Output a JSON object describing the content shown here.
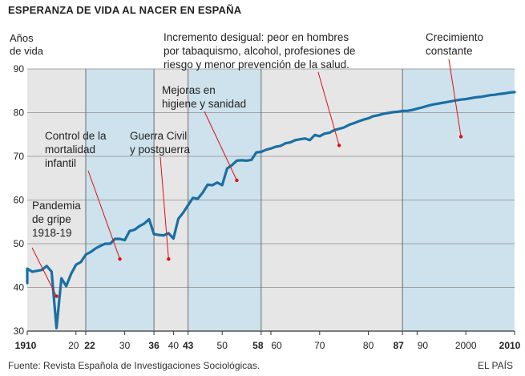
{
  "chart_data": {
    "type": "line",
    "title": "ESPERANZA DE VIDA AL NACER EN ESPAÑA",
    "ylabel": [
      "Años",
      "de vida"
    ],
    "xlabel": "",
    "ylim": [
      30,
      90
    ],
    "xlim": [
      1910,
      2010
    ],
    "yticks": [
      30,
      40,
      50,
      60,
      70,
      80,
      90
    ],
    "xticks": [
      {
        "value": 1910,
        "label": "1910",
        "bold": true
      },
      {
        "value": 1920,
        "label": "20",
        "bold": false
      },
      {
        "value": 1922,
        "label": "22",
        "bold": true
      },
      {
        "value": 1930,
        "label": "30",
        "bold": false
      },
      {
        "value": 1936,
        "label": "36",
        "bold": true
      },
      {
        "value": 1940,
        "label": "40",
        "bold": false
      },
      {
        "value": 1943,
        "label": "43",
        "bold": true
      },
      {
        "value": 1950,
        "label": "50",
        "bold": false
      },
      {
        "value": 1958,
        "label": "58",
        "bold": true
      },
      {
        "value": 1960,
        "label": "60",
        "bold": false
      },
      {
        "value": 1970,
        "label": "70",
        "bold": false
      },
      {
        "value": 1980,
        "label": "80",
        "bold": false
      },
      {
        "value": 1987,
        "label": "87",
        "bold": true
      },
      {
        "value": 1990,
        "label": "90",
        "bold": false
      },
      {
        "value": 2000,
        "label": "2000",
        "bold": false
      },
      {
        "value": 2010,
        "label": "2010",
        "bold": true
      }
    ],
    "grid": true,
    "periods": [
      {
        "start": 1910,
        "end": 1918,
        "color": "#e6e6e6"
      },
      {
        "start": 1918,
        "end": 1922,
        "color": "#e6e6e6"
      },
      {
        "start": 1922,
        "end": 1936,
        "color": "#cde2ec"
      },
      {
        "start": 1936,
        "end": 1943,
        "color": "#e6e6e6"
      },
      {
        "start": 1943,
        "end": 1958,
        "color": "#cde2ec"
      },
      {
        "start": 1958,
        "end": 1987,
        "color": "#e6e6e6"
      },
      {
        "start": 1987,
        "end": 2010,
        "color": "#cde2ec"
      }
    ],
    "series": [
      {
        "color": "#1a6fa3",
        "x": [
          1908,
          1909,
          1910,
          1911,
          1912,
          1913,
          1914,
          1915,
          1916,
          1917,
          1918,
          1919,
          1920,
          1921,
          1922,
          1923,
          1924,
          1925,
          1926,
          1927,
          1928,
          1929,
          1930,
          1931,
          1932,
          1933,
          1934,
          1935,
          1936,
          1937,
          1938,
          1939,
          1940,
          1941,
          1942,
          1943,
          1944,
          1945,
          1946,
          1947,
          1948,
          1949,
          1950,
          1951,
          1952,
          1953,
          1954,
          1955,
          1956,
          1957,
          1958,
          1959,
          1960,
          1961,
          1962,
          1963,
          1964,
          1965,
          1966,
          1967,
          1968,
          1969,
          1970,
          1971,
          1972,
          1973,
          1974,
          1975,
          1976,
          1977,
          1978,
          1979,
          1980,
          1981,
          1982,
          1983,
          1984,
          1985,
          1986,
          1987,
          1988,
          1989,
          1990,
          1991,
          1992,
          1993,
          1994,
          1995,
          1996,
          1997,
          1998,
          1999,
          2000,
          2001,
          2002,
          2003,
          2004,
          2005,
          2006,
          2007,
          2008,
          2009,
          2010
        ],
        "y": [
          42.0,
          41.0,
          44.3,
          43.6,
          43.8,
          44.0,
          44.9,
          43.6,
          30.7,
          42.1,
          40.3,
          43.1,
          45.2,
          45.8,
          47.5,
          48.1,
          48.9,
          49.5,
          50.0,
          50.0,
          51.1,
          51.1,
          50.8,
          52.9,
          53.2,
          54.0,
          54.6,
          55.6,
          52.2,
          52.0,
          51.9,
          52.4,
          51.2,
          55.7,
          57.1,
          58.8,
          60.5,
          60.3,
          61.7,
          63.5,
          63.4,
          64.0,
          63.4,
          67.2,
          68.0,
          69.0,
          69.1,
          69.0,
          69.2,
          70.9,
          71.0,
          71.5,
          71.8,
          72.2,
          72.4,
          73.0,
          73.2,
          73.7,
          73.9,
          74.1,
          73.7,
          74.9,
          74.6,
          75.2,
          75.4,
          76.0,
          76.3,
          76.6,
          77.2,
          77.6,
          78.0,
          78.4,
          78.7,
          79.2,
          79.4,
          79.7,
          79.9,
          80.1,
          80.2,
          80.4,
          80.4,
          80.6,
          80.9,
          81.2,
          81.5,
          81.8,
          82.0,
          82.2,
          82.4,
          82.6,
          82.8,
          83.0,
          83.1,
          83.3,
          83.5,
          83.6,
          83.8,
          84.0,
          84.1,
          84.3,
          84.4,
          84.6,
          84.7
        ]
      }
    ],
    "annotations": [
      {
        "lines": [
          "Pandemia",
          "de gripe",
          "1918-19"
        ],
        "target": [
          1916,
          38
        ]
      },
      {
        "lines": [
          "Control de la",
          "mortalidad",
          "infantil"
        ],
        "target": [
          1929,
          46.5
        ]
      },
      {
        "lines": [
          "Guerra Civil",
          "y postguerra"
        ],
        "target": [
          1939,
          46.5
        ]
      },
      {
        "lines": [
          "Mejoras en",
          "higiene y sanidad"
        ],
        "target": [
          1953,
          64.5
        ]
      },
      {
        "lines": [
          "Incremento desigual: peor en hombres",
          "por tabaquismo, alcohol, profesiones de",
          "riesgo y menor prevención de la salud."
        ],
        "target": [
          1974,
          72.5
        ]
      },
      {
        "lines": [
          "Crecimiento",
          "constante"
        ],
        "target": [
          1999,
          74.5
        ]
      }
    ],
    "source": "Fuente: Revista Española de Investigaciones Sociológicas.",
    "brand": "EL PAÍS"
  }
}
